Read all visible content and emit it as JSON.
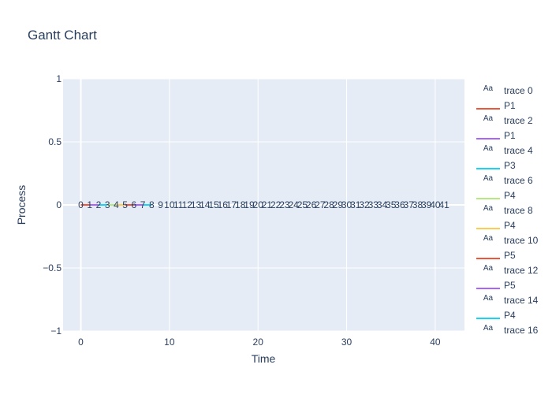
{
  "chart_data": {
    "type": "line",
    "title": "Gantt Chart",
    "xlabel": "Time",
    "ylabel": "Process",
    "xlim": [
      -2,
      43.3
    ],
    "ylim": [
      -1,
      1
    ],
    "x_ticks": [
      0,
      10,
      20,
      30,
      40
    ],
    "y_ticks": [
      1,
      0.5,
      0,
      -0.5,
      -1
    ],
    "y_tick_labels": [
      "1",
      "0.5",
      "0",
      "−0.5",
      "−1"
    ],
    "grid": true,
    "plot_bgcolor": "#e5ecf6",
    "legend_position": "right",
    "segments": [
      {
        "name": "P1",
        "x": [
          0,
          1
        ],
        "y": [
          0,
          0
        ],
        "color": "#ef553b"
      },
      {
        "name": "P1",
        "x": [
          1,
          2
        ],
        "y": [
          0,
          0
        ],
        "color": "#ab63fa"
      },
      {
        "name": "P3",
        "x": [
          2,
          3
        ],
        "y": [
          0,
          0
        ],
        "color": "#19d3f3"
      },
      {
        "name": "P4",
        "x": [
          3,
          4
        ],
        "y": [
          0,
          0
        ],
        "color": "#b6e880"
      },
      {
        "name": "P4",
        "x": [
          4,
          5
        ],
        "y": [
          0,
          0
        ],
        "color": "#fecb52"
      },
      {
        "name": "P5",
        "x": [
          5,
          6
        ],
        "y": [
          0,
          0
        ],
        "color": "#ef553b"
      },
      {
        "name": "P5",
        "x": [
          6,
          7
        ],
        "y": [
          0,
          0
        ],
        "color": "#ab63fa"
      },
      {
        "name": "P4",
        "x": [
          7,
          8
        ],
        "y": [
          0,
          0
        ],
        "color": "#19d3f3"
      }
    ],
    "time_labels": {
      "x": [
        0,
        1,
        2,
        3,
        4,
        5,
        6,
        7,
        8,
        9,
        10,
        11,
        12,
        13,
        14,
        15,
        16,
        17,
        18,
        19,
        20,
        21,
        22,
        23,
        24,
        25,
        26,
        27,
        28,
        29,
        30,
        31,
        32,
        33,
        34,
        35,
        36,
        37,
        38,
        39,
        40,
        41
      ],
      "text": [
        "0",
        "1",
        "2",
        "3",
        "4",
        "5",
        "6",
        "7",
        "8",
        "9",
        "10",
        "11",
        "12",
        "13",
        "14",
        "15",
        "16",
        "17",
        "18",
        "19",
        "20",
        "21",
        "22",
        "23",
        "24",
        "25",
        "26",
        "27",
        "28",
        "29",
        "30",
        "31",
        "32",
        "33",
        "34",
        "35",
        "36",
        "37",
        "38",
        "39",
        "40",
        "41"
      ],
      "y": 0
    },
    "legend": [
      {
        "name": "trace 0",
        "kind": "text"
      },
      {
        "name": "P1",
        "kind": "line",
        "color": "#ef553b"
      },
      {
        "name": "trace 2",
        "kind": "text"
      },
      {
        "name": "P1",
        "kind": "line",
        "color": "#ab63fa"
      },
      {
        "name": "trace 4",
        "kind": "text"
      },
      {
        "name": "P3",
        "kind": "line",
        "color": "#19d3f3"
      },
      {
        "name": "trace 6",
        "kind": "text"
      },
      {
        "name": "P4",
        "kind": "line",
        "color": "#b6e880"
      },
      {
        "name": "trace 8",
        "kind": "text"
      },
      {
        "name": "P4",
        "kind": "line",
        "color": "#fecb52"
      },
      {
        "name": "trace 10",
        "kind": "text"
      },
      {
        "name": "P5",
        "kind": "line",
        "color": "#ef553b"
      },
      {
        "name": "trace 12",
        "kind": "text"
      },
      {
        "name": "P5",
        "kind": "line",
        "color": "#ab63fa"
      },
      {
        "name": "trace 14",
        "kind": "text"
      },
      {
        "name": "P4",
        "kind": "line",
        "color": "#19d3f3"
      },
      {
        "name": "trace 16",
        "kind": "text"
      }
    ],
    "legend_text_symbol": "Aa"
  }
}
